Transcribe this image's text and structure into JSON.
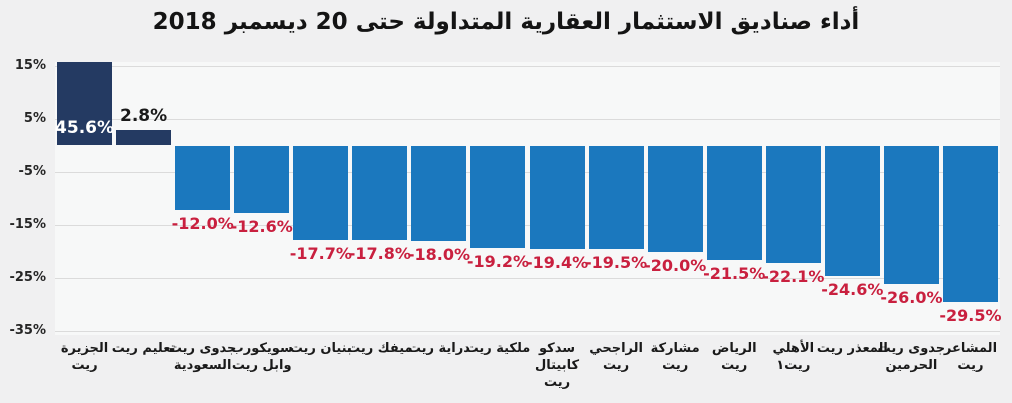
{
  "colors": {
    "positive_bar": "#243A62",
    "negative_bar": "#1B78BE",
    "negative_label": "#C9203F",
    "positive_label_inside": "#FFFFFF",
    "positive_label_outside": "#1A1A1A",
    "grid": "#DBDBDB",
    "figure_bg": "#F0F0F1",
    "plot_bg": "#F7F8F8",
    "axis_text": "#262626"
  },
  "chart_data": {
    "type": "bar",
    "title": "أداء صناديق الاستثمار العقارية المتداولة حتى 20 ديسمبر 2018",
    "categories": [
      "الجزيرة ريت",
      "تعليم ريت",
      "جدوى ريت السعودية",
      "سويكورب وابل ريت",
      "بنيان ريت",
      "ميفك ريت",
      "دراية ريت",
      "ملكية ريت",
      "سدكو كابيتال ريت",
      "الراجحي ريت",
      "مشاركة ريت",
      "الرياض ريت",
      "الأهلي ريت١",
      "المعذر ريت",
      "جدوى ريت الحرمين",
      "المشاعر ريت"
    ],
    "category_display": [
      "الجزيرة\nريت",
      "تعليم ريت",
      "جدوى ريت\nالسعودية",
      "سويكورب\nوابل ريت",
      "بنيان ريت",
      "ميفك ريت",
      "دراية ريت",
      "ملكية ريت",
      "سدكو\nكابيتال\nريت",
      "الراجحي\nريت",
      "مشاركة\nريت",
      "الرياض\nريت",
      "الأهلي\nريت١",
      "المعذر ريت",
      "جدوى ريت\nالحرمين",
      "المشاعر\nريت"
    ],
    "values": [
      45.6,
      2.8,
      -12.0,
      -12.6,
      -17.7,
      -17.8,
      -18.0,
      -19.2,
      -19.4,
      -19.5,
      -20.0,
      -21.5,
      -22.1,
      -24.6,
      -26.0,
      -29.5
    ],
    "value_labels": [
      "45.6%",
      "2.8%",
      "-12.0%",
      "-12.6%",
      "-17.7%",
      "-17.8%",
      "-18.0%",
      "-19.2%",
      "-19.4%",
      "-19.5%",
      "-20.0%",
      "-21.5%",
      "-22.1%",
      "-24.6%",
      "-26.0%",
      "-29.5%"
    ],
    "yticks": [
      15,
      5,
      -5,
      -15,
      -25,
      -35
    ],
    "ytick_labels": [
      "15%",
      "5%",
      "-5%",
      "-15%",
      "-25%",
      "-35%"
    ],
    "ylim": [
      -35,
      15
    ],
    "grid": true,
    "legend": false,
    "ymax_clips_first_bar": true
  }
}
